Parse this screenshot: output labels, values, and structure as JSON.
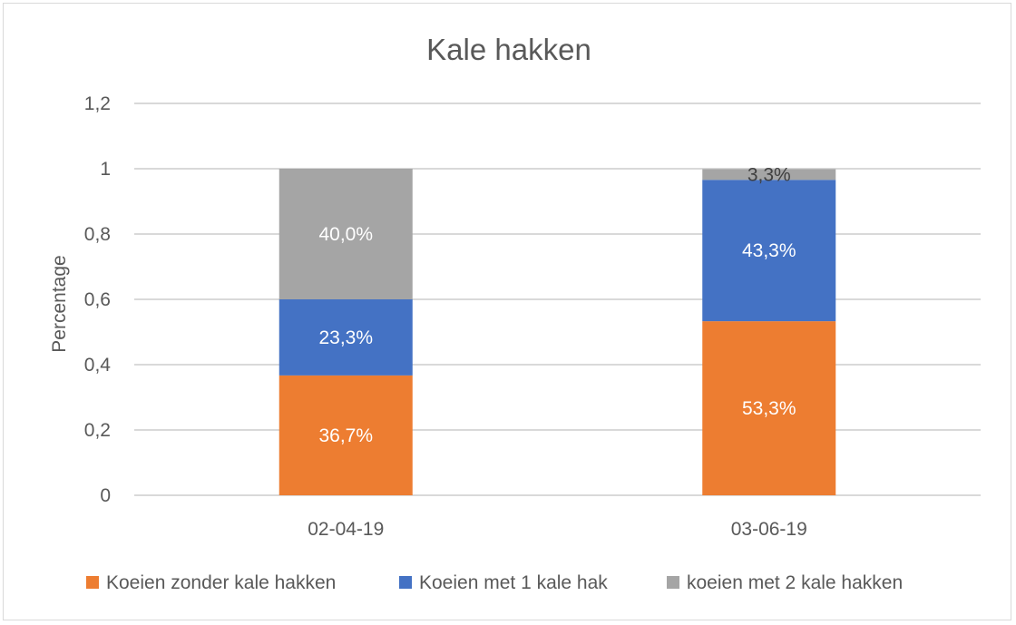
{
  "chart_data": {
    "type": "bar",
    "stacked": true,
    "title": "Kale hakken",
    "ylabel": "Percentage",
    "xlabel": "",
    "categories": [
      "02-04-19",
      "03-06-19"
    ],
    "ylim": [
      0,
      1.2
    ],
    "yticks": [
      0,
      0.2,
      0.4,
      0.6,
      0.8,
      1,
      1.2
    ],
    "ytick_labels": [
      "0",
      "0,2",
      "0,4",
      "0,6",
      "0,8",
      "1",
      "1,2"
    ],
    "grid": true,
    "legend": "bottom",
    "series": [
      {
        "name": "Koeien zonder kale hakken",
        "color": "#ed7d31",
        "values": [
          0.367,
          0.533
        ],
        "labels": [
          "36,7%",
          "53,3%"
        ],
        "label_color": "#ffffff"
      },
      {
        "name": "Koeien met 1 kale hak",
        "color": "#4472c4",
        "values": [
          0.233,
          0.433
        ],
        "labels": [
          "23,3%",
          "43,3%"
        ],
        "label_color": "#ffffff"
      },
      {
        "name": "koeien met 2 kale hakken",
        "color": "#a5a5a5",
        "values": [
          0.4,
          0.033
        ],
        "labels": [
          "40,0%",
          "3,3%"
        ],
        "label_color_by_point": [
          "#ffffff",
          "#404040"
        ]
      }
    ]
  }
}
